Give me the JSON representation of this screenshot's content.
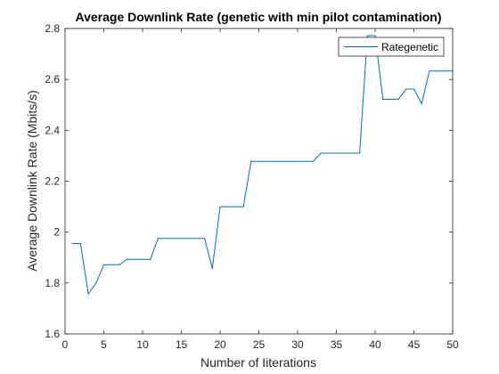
{
  "chart_data": {
    "type": "line",
    "title": "Average Downlink Rate (genetic with min pilot contamination)",
    "xlabel": "Number of Iiterations",
    "ylabel": "Average Downlink Rate (Mbits/s)",
    "xlim": [
      0,
      50
    ],
    "ylim": [
      1.6,
      2.8
    ],
    "x_ticks": [
      "0",
      "5",
      "10",
      "15",
      "20",
      "25",
      "30",
      "35",
      "40",
      "45",
      "50"
    ],
    "y_ticks": [
      "1.6",
      "1.8",
      "2",
      "2.2",
      "2.4",
      "2.6",
      "2.8"
    ],
    "grid": false,
    "legend_location": "top-right",
    "colors": {
      "series": "#0072bd",
      "axes": "#262626"
    },
    "series": [
      {
        "name": "Rategenetic",
        "x": [
          1,
          2,
          3,
          4,
          5,
          6,
          7,
          8,
          9,
          10,
          11,
          12,
          13,
          14,
          15,
          16,
          17,
          18,
          19,
          20,
          21,
          22,
          23,
          24,
          25,
          26,
          27,
          28,
          29,
          30,
          31,
          32,
          33,
          34,
          35,
          36,
          37,
          38,
          39,
          40,
          41,
          42,
          43,
          44,
          45,
          46,
          47,
          48,
          49,
          50
        ],
        "y": [
          1.955,
          1.955,
          1.757,
          1.8,
          1.872,
          1.872,
          1.872,
          1.893,
          1.893,
          1.893,
          1.893,
          1.975,
          1.975,
          1.975,
          1.975,
          1.975,
          1.975,
          1.975,
          1.857,
          2.1,
          2.1,
          2.1,
          2.1,
          2.278,
          2.278,
          2.278,
          2.278,
          2.278,
          2.278,
          2.278,
          2.278,
          2.278,
          2.31,
          2.31,
          2.31,
          2.31,
          2.31,
          2.31,
          2.772,
          2.772,
          2.522,
          2.522,
          2.522,
          2.562,
          2.562,
          2.505,
          2.633,
          2.633,
          2.633,
          2.633
        ]
      }
    ]
  }
}
